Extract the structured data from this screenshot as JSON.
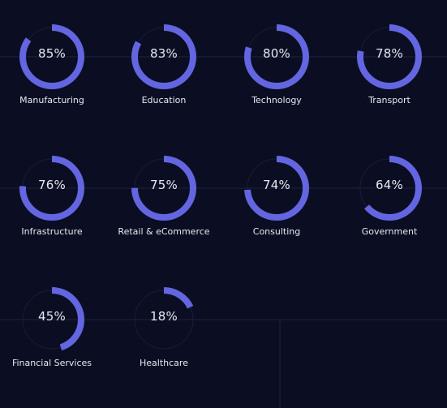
{
  "colors": {
    "background": "#0b0e22",
    "ring": "#6366e0",
    "track": "#191d36",
    "gridline": "#1c2140",
    "text": "#e6e8f2"
  },
  "chart_data": {
    "type": "donut",
    "unit": "%",
    "items": [
      {
        "label": "Manufacturing",
        "value": 85,
        "value_text": "85%"
      },
      {
        "label": "Education",
        "value": 83,
        "value_text": "83%"
      },
      {
        "label": "Technology",
        "value": 80,
        "value_text": "80%"
      },
      {
        "label": "Transport",
        "value": 78,
        "value_text": "78%"
      },
      {
        "label": "Infrastructure",
        "value": 76,
        "value_text": "76%"
      },
      {
        "label": "Retail & eCommerce",
        "value": 75,
        "value_text": "75%"
      },
      {
        "label": "Consulting",
        "value": 74,
        "value_text": "74%"
      },
      {
        "label": "Government",
        "value": 64,
        "value_text": "64%"
      },
      {
        "label": "Financial Services",
        "value": 45,
        "value_text": "45%"
      },
      {
        "label": "Healthcare",
        "value": 18,
        "value_text": "18%"
      }
    ]
  }
}
